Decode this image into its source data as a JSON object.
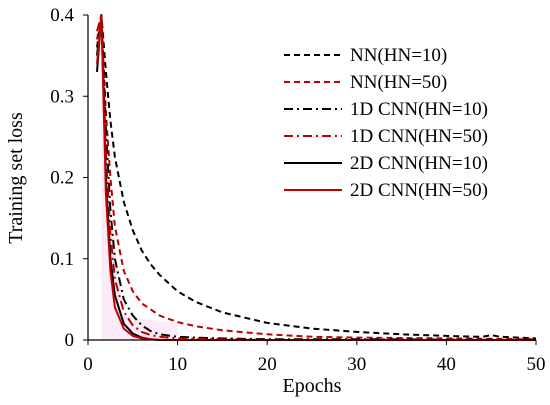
{
  "chart_data": {
    "type": "line",
    "title": "",
    "xlabel": "Epochs",
    "ylabel": "Training set loss",
    "xlim": [
      0,
      50
    ],
    "ylim": [
      0,
      0.4
    ],
    "x_ticks": [
      "0",
      "10",
      "20",
      "30",
      "40",
      "50"
    ],
    "y_ticks": [
      "0",
      "0.1",
      "0.2",
      "0.3",
      "0.4"
    ],
    "grid": false,
    "legend_position": "top-right",
    "series": [
      {
        "name": "NN(HN=10)",
        "color": "#000000",
        "dash": "dashed",
        "x": [
          1,
          1.5,
          2,
          2.5,
          3,
          4,
          5,
          6,
          7,
          8,
          10,
          12,
          15,
          20,
          25,
          30,
          35,
          40,
          44,
          45,
          46,
          50
        ],
        "y": [
          0.36,
          0.4,
          0.33,
          0.27,
          0.225,
          0.17,
          0.135,
          0.11,
          0.093,
          0.08,
          0.06,
          0.047,
          0.034,
          0.021,
          0.014,
          0.01,
          0.007,
          0.005,
          0.004,
          0.006,
          0.004,
          0.002
        ]
      },
      {
        "name": "NN(HN=50)",
        "color": "#c00000",
        "dash": "dashed",
        "x": [
          1,
          1.5,
          2,
          2.5,
          3,
          4,
          5,
          6,
          8,
          10,
          12,
          15,
          20,
          25,
          30,
          40,
          50
        ],
        "y": [
          0.37,
          0.4,
          0.28,
          0.2,
          0.14,
          0.085,
          0.06,
          0.045,
          0.03,
          0.022,
          0.017,
          0.012,
          0.007,
          0.004,
          0.003,
          0.002,
          0.001
        ]
      },
      {
        "name": "1D CNN(HN=10)",
        "color": "#000000",
        "dash": "dashdot",
        "x": [
          1,
          1.5,
          2,
          2.5,
          3,
          4,
          5,
          6,
          7,
          8,
          10,
          12,
          15,
          20,
          30,
          50
        ],
        "y": [
          0.35,
          0.4,
          0.26,
          0.16,
          0.1,
          0.05,
          0.03,
          0.018,
          0.011,
          0.007,
          0.004,
          0.003,
          0.002,
          0.001,
          0.001,
          0.0
        ]
      },
      {
        "name": "1D CNN(HN=50)",
        "color": "#c00000",
        "dash": "dashdot",
        "x": [
          1,
          1.5,
          2,
          2.5,
          3,
          4,
          5,
          6,
          7,
          8,
          10,
          15,
          20,
          50
        ],
        "y": [
          0.38,
          0.4,
          0.23,
          0.13,
          0.075,
          0.035,
          0.018,
          0.01,
          0.006,
          0.004,
          0.002,
          0.001,
          0.0,
          0.0
        ]
      },
      {
        "name": "2D CNN(HN=10)",
        "color": "#000000",
        "dash": "solid",
        "x": [
          1,
          1.5,
          2,
          2.5,
          3,
          4,
          5,
          6,
          7,
          8,
          10,
          20,
          50
        ],
        "y": [
          0.33,
          0.4,
          0.2,
          0.1,
          0.055,
          0.02,
          0.008,
          0.003,
          0.001,
          0.0,
          0.0,
          0.0,
          0.0
        ]
      },
      {
        "name": "2D CNN(HN=50)",
        "color": "#c00000",
        "dash": "solid",
        "x": [
          1,
          1.5,
          2,
          2.5,
          3,
          4,
          5,
          6,
          7,
          8,
          10,
          20,
          50
        ],
        "y": [
          0.34,
          0.4,
          0.18,
          0.085,
          0.04,
          0.014,
          0.005,
          0.002,
          0.001,
          0.0,
          0.0,
          0.0,
          0.0
        ]
      }
    ]
  }
}
